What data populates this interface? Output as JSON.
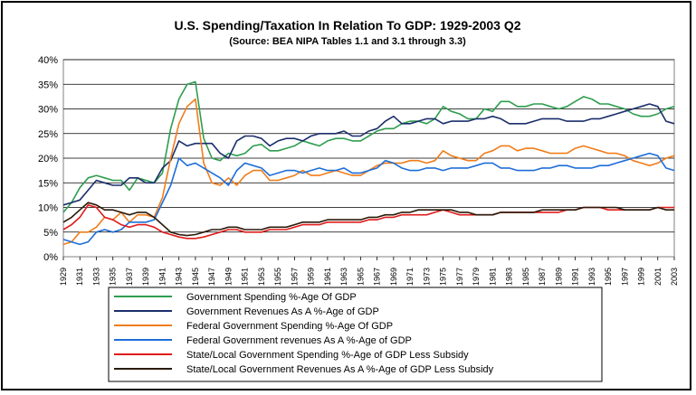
{
  "chart_data": {
    "type": "line",
    "title": "U.S. Spending/Taxation In Relation To GDP:  1929-2003 Q2",
    "subtitle": "(Source:  BEA NIPA Tables 1.1 and 3.1 through 3.3)",
    "xlabel": "",
    "ylabel": "",
    "ylim": [
      0,
      40
    ],
    "xlim": [
      1929,
      2003
    ],
    "y_ticks": [
      "0%",
      "5%",
      "10%",
      "15%",
      "20%",
      "25%",
      "30%",
      "35%",
      "40%"
    ],
    "x_ticks": [
      "1929",
      "1931",
      "1933",
      "1935",
      "1937",
      "1939",
      "1941",
      "1943",
      "1945",
      "1947",
      "1949",
      "1951",
      "1953",
      "1955",
      "1957",
      "1959",
      "1961",
      "1963",
      "1965",
      "1967",
      "1969",
      "1971",
      "1973",
      "1975",
      "1977",
      "1979",
      "1981",
      "1983",
      "1985",
      "1987",
      "1989",
      "1991",
      "1993",
      "1995",
      "1997",
      "1999",
      "2001",
      "2003"
    ],
    "grid": true,
    "legend_position": "bottom",
    "series": [
      {
        "name": "Government Spending %-Age Of GDP",
        "color": "#2e9e4f",
        "x": [
          1929,
          1930,
          1931,
          1932,
          1933,
          1934,
          1935,
          1936,
          1937,
          1938,
          1939,
          1940,
          1941,
          1942,
          1943,
          1944,
          1945,
          1946,
          1947,
          1948,
          1949,
          1950,
          1951,
          1952,
          1953,
          1954,
          1955,
          1956,
          1957,
          1958,
          1959,
          1960,
          1961,
          1962,
          1963,
          1964,
          1965,
          1966,
          1967,
          1968,
          1969,
          1970,
          1971,
          1972,
          1973,
          1974,
          1975,
          1976,
          1977,
          1978,
          1979,
          1980,
          1981,
          1982,
          1983,
          1984,
          1985,
          1986,
          1987,
          1988,
          1989,
          1990,
          1991,
          1992,
          1993,
          1994,
          1995,
          1996,
          1997,
          1998,
          1999,
          2000,
          2001,
          2002,
          2003
        ],
        "values": [
          9,
          11,
          14,
          16,
          16.5,
          16,
          15.5,
          15.5,
          13.5,
          16,
          15.5,
          15,
          17,
          26,
          32,
          35,
          35.5,
          24,
          20,
          19.5,
          21,
          20.5,
          21,
          22.5,
          22.8,
          21.5,
          21.5,
          22,
          22.5,
          23.5,
          23,
          22.5,
          23.5,
          24,
          24,
          23.5,
          23.5,
          24.5,
          25.5,
          26,
          26,
          27,
          27.5,
          27.5,
          27,
          28,
          30.5,
          29.5,
          29,
          28,
          28,
          30,
          29.5,
          31.5,
          31.5,
          30.5,
          30.5,
          31,
          31,
          30.5,
          30,
          30.5,
          31.5,
          32.5,
          32,
          31,
          31,
          30.5,
          30,
          29,
          28.5,
          28.5,
          29,
          30,
          30.5
        ]
      },
      {
        "name": "Government Revenues As A %-Age of GDP",
        "color": "#1a2e6b",
        "x": [
          1929,
          1930,
          1931,
          1932,
          1933,
          1934,
          1935,
          1936,
          1937,
          1938,
          1939,
          1940,
          1941,
          1942,
          1943,
          1944,
          1945,
          1946,
          1947,
          1948,
          1949,
          1950,
          1951,
          1952,
          1953,
          1954,
          1955,
          1956,
          1957,
          1958,
          1959,
          1960,
          1961,
          1962,
          1963,
          1964,
          1965,
          1966,
          1967,
          1968,
          1969,
          1970,
          1971,
          1972,
          1973,
          1974,
          1975,
          1976,
          1977,
          1978,
          1979,
          1980,
          1981,
          1982,
          1983,
          1984,
          1985,
          1986,
          1987,
          1988,
          1989,
          1990,
          1991,
          1992,
          1993,
          1994,
          1995,
          1996,
          1997,
          1998,
          1999,
          2000,
          2001,
          2002,
          2003
        ],
        "values": [
          10.5,
          11,
          11.5,
          13.5,
          15.5,
          15,
          14.5,
          14.5,
          16,
          16,
          15,
          15,
          18,
          19.5,
          23.5,
          22.5,
          23,
          23,
          23,
          21,
          20,
          23.5,
          24.5,
          24.5,
          24,
          22.5,
          23.5,
          24,
          24,
          23.5,
          24.5,
          25,
          25,
          25,
          25.5,
          24.5,
          24.5,
          25.5,
          26,
          27.5,
          28.5,
          27,
          27,
          27.5,
          28,
          28,
          27,
          27.5,
          27.5,
          27.5,
          28,
          28,
          28.5,
          28,
          27,
          27,
          27,
          27.5,
          28,
          28,
          28,
          27.5,
          27.5,
          27.5,
          28,
          28,
          28.5,
          29,
          29.5,
          30,
          30.5,
          31,
          30.5,
          27.5,
          27
        ]
      },
      {
        "name": "Federal Government Spending %-Age Of GDP",
        "color": "#f07d1a",
        "x": [
          1929,
          1930,
          1931,
          1932,
          1933,
          1934,
          1935,
          1936,
          1937,
          1938,
          1939,
          1940,
          1941,
          1942,
          1943,
          1944,
          1945,
          1946,
          1947,
          1948,
          1949,
          1950,
          1951,
          1952,
          1953,
          1954,
          1955,
          1956,
          1957,
          1958,
          1959,
          1960,
          1961,
          1962,
          1963,
          1964,
          1965,
          1966,
          1967,
          1968,
          1969,
          1970,
          1971,
          1972,
          1973,
          1974,
          1975,
          1976,
          1977,
          1978,
          1979,
          1980,
          1981,
          1982,
          1983,
          1984,
          1985,
          1986,
          1987,
          1988,
          1989,
          1990,
          1991,
          1992,
          1993,
          1994,
          1995,
          1996,
          1997,
          1998,
          1999,
          2000,
          2001,
          2002,
          2003
        ],
        "values": [
          2.5,
          3,
          5,
          5,
          6,
          8,
          7.5,
          9,
          7,
          8.5,
          8.5,
          8,
          12,
          20,
          27,
          30.5,
          32,
          19,
          15,
          14.5,
          16,
          14.5,
          16.5,
          17.5,
          17.5,
          15.5,
          15.5,
          16,
          16.5,
          17.5,
          16.5,
          16.5,
          17,
          17.5,
          17,
          16.5,
          16.5,
          17.5,
          18.5,
          19,
          19,
          19,
          19.5,
          19.5,
          19,
          19.5,
          21.5,
          20.5,
          20,
          19.5,
          19.5,
          21,
          21.5,
          22.5,
          22.5,
          21.5,
          22,
          22,
          21.5,
          21,
          21,
          21,
          22,
          22.5,
          22,
          21.5,
          21,
          21,
          20.5,
          19.5,
          19,
          18.5,
          19,
          20,
          20.5
        ]
      },
      {
        "name": "Federal Government revenues As A %-Age of GDP",
        "color": "#1e6ed8",
        "x": [
          1929,
          1930,
          1931,
          1932,
          1933,
          1934,
          1935,
          1936,
          1937,
          1938,
          1939,
          1940,
          1941,
          1942,
          1943,
          1944,
          1945,
          1946,
          1947,
          1948,
          1949,
          1950,
          1951,
          1952,
          1953,
          1954,
          1955,
          1956,
          1957,
          1958,
          1959,
          1960,
          1961,
          1962,
          1963,
          1964,
          1965,
          1966,
          1967,
          1968,
          1969,
          1970,
          1971,
          1972,
          1973,
          1974,
          1975,
          1976,
          1977,
          1978,
          1979,
          1980,
          1981,
          1982,
          1983,
          1984,
          1985,
          1986,
          1987,
          1988,
          1989,
          1990,
          1991,
          1992,
          1993,
          1994,
          1995,
          1996,
          1997,
          1998,
          1999,
          2000,
          2001,
          2002,
          2003
        ],
        "values": [
          3.5,
          3,
          2.5,
          3,
          5,
          5.5,
          5,
          5.5,
          7,
          7,
          7,
          7.5,
          11,
          14.5,
          20,
          18.5,
          19,
          18,
          17,
          16,
          14.5,
          17.5,
          19,
          18.5,
          18,
          16.5,
          17,
          17.5,
          17.5,
          17,
          17.5,
          18,
          17.5,
          17.5,
          18,
          17,
          17,
          17.5,
          18,
          19.5,
          19,
          18,
          17.5,
          17.5,
          18,
          18,
          17.5,
          18,
          18,
          18,
          18.5,
          19,
          19,
          18,
          18,
          17.5,
          17.5,
          17.5,
          18,
          18,
          18.5,
          18.5,
          18,
          18,
          18,
          18.5,
          18.5,
          19,
          19.5,
          20,
          20.5,
          21,
          20.5,
          18,
          17.5
        ]
      },
      {
        "name": "State/Local Government Spending %-Age of GDP Less Subsidy",
        "color": "#e01b1b",
        "x": [
          1929,
          1930,
          1931,
          1932,
          1933,
          1934,
          1935,
          1936,
          1937,
          1938,
          1939,
          1940,
          1941,
          1942,
          1943,
          1944,
          1945,
          1946,
          1947,
          1948,
          1949,
          1950,
          1951,
          1952,
          1953,
          1954,
          1955,
          1956,
          1957,
          1958,
          1959,
          1960,
          1961,
          1962,
          1963,
          1964,
          1965,
          1966,
          1967,
          1968,
          1969,
          1970,
          1971,
          1972,
          1973,
          1974,
          1975,
          1976,
          1977,
          1978,
          1979,
          1980,
          1981,
          1982,
          1983,
          1984,
          1985,
          1986,
          1987,
          1988,
          1989,
          1990,
          1991,
          1992,
          1993,
          1994,
          1995,
          1996,
          1997,
          1998,
          1999,
          2000,
          2001,
          2002,
          2003
        ],
        "values": [
          5.5,
          6.5,
          8,
          10.5,
          10,
          8,
          7.5,
          6.5,
          6,
          6.5,
          6.5,
          6,
          5,
          4.5,
          4,
          3.7,
          3.7,
          4,
          4.5,
          5,
          5.5,
          5.5,
          5,
          5,
          5,
          5.5,
          5.5,
          5.5,
          6,
          6.5,
          6.5,
          6.5,
          7,
          7,
          7,
          7,
          7,
          7.5,
          7.5,
          8,
          8,
          8.5,
          8.5,
          8.5,
          8.5,
          9,
          9.5,
          9,
          8.5,
          8.5,
          8.5,
          8.5,
          8.5,
          9,
          9,
          9,
          9,
          9,
          9,
          9,
          9,
          9.5,
          9.5,
          10,
          10,
          10,
          9.5,
          9.5,
          9.5,
          9.5,
          9.5,
          9.5,
          10,
          10,
          10
        ]
      },
      {
        "name": "State/Local Government Revenues As A %-Age of GDP Less Subsidy",
        "color": "#2a1a0a",
        "x": [
          1929,
          1930,
          1931,
          1932,
          1933,
          1934,
          1935,
          1936,
          1937,
          1938,
          1939,
          1940,
          1941,
          1942,
          1943,
          1944,
          1945,
          1946,
          1947,
          1948,
          1949,
          1950,
          1951,
          1952,
          1953,
          1954,
          1955,
          1956,
          1957,
          1958,
          1959,
          1960,
          1961,
          1962,
          1963,
          1964,
          1965,
          1966,
          1967,
          1968,
          1969,
          1970,
          1971,
          1972,
          1973,
          1974,
          1975,
          1976,
          1977,
          1978,
          1979,
          1980,
          1981,
          1982,
          1983,
          1984,
          1985,
          1986,
          1987,
          1988,
          1989,
          1990,
          1991,
          1992,
          1993,
          1994,
          1995,
          1996,
          1997,
          1998,
          1999,
          2000,
          2001,
          2002,
          2003
        ],
        "values": [
          7,
          8,
          9.5,
          11,
          10.5,
          9.5,
          9.5,
          9,
          8.5,
          9,
          9,
          8,
          6.5,
          5,
          4.5,
          4.3,
          4.5,
          5,
          5.5,
          5.5,
          6,
          6,
          5.5,
          5.5,
          5.5,
          6,
          6,
          6,
          6.5,
          7,
          7,
          7,
          7.5,
          7.5,
          7.5,
          7.5,
          7.5,
          8,
          8,
          8.5,
          8.5,
          9,
          9,
          9.5,
          9.5,
          9.5,
          9.5,
          9.5,
          9,
          9,
          8.5,
          8.5,
          8.5,
          9,
          9,
          9,
          9,
          9,
          9.5,
          9.5,
          9.5,
          9.5,
          9.5,
          10,
          10,
          10,
          10,
          10,
          9.5,
          9.5,
          9.5,
          9.5,
          10,
          9.5,
          9.5
        ]
      }
    ]
  }
}
